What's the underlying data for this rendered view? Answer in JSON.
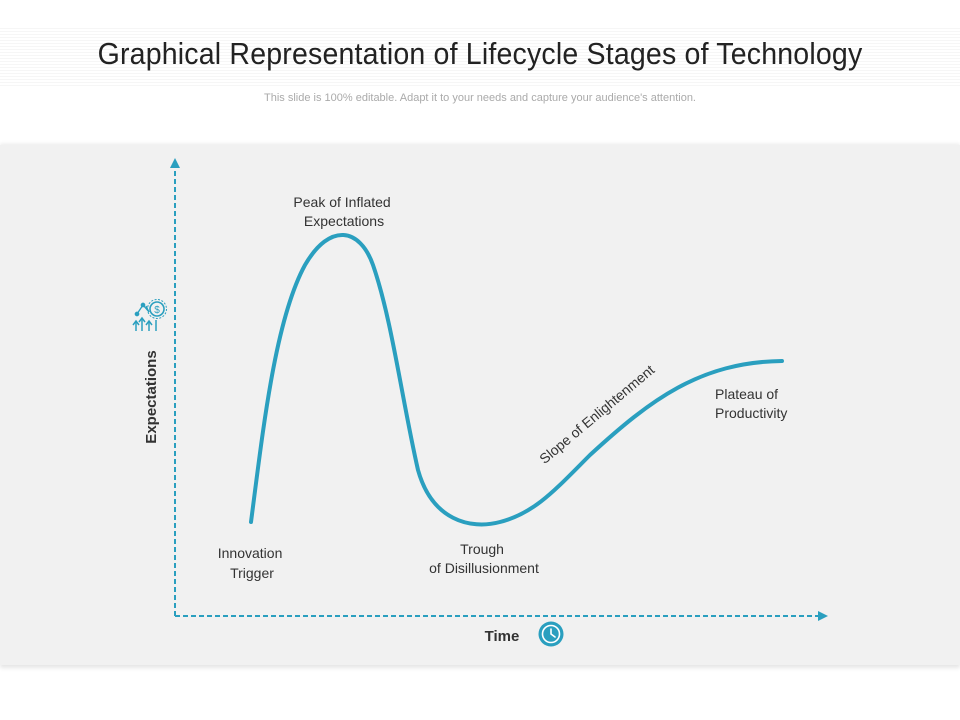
{
  "header": {
    "title": "Graphical Representation of Lifecycle Stages of Technology",
    "subtitle": "This slide is 100% editable. Adapt it to your needs and capture your audience's attention."
  },
  "diagram": {
    "accent_color": "#2a9fbf",
    "y_axis_label": "Expectations",
    "x_axis_label": "Time",
    "y_axis_icon": "growth-chart-dollar-icon",
    "x_axis_icon": "clock-icon",
    "stages": {
      "innovation_trigger": [
        "Innovation",
        "Trigger"
      ],
      "peak": [
        "Peak of Inflated",
        "Expectations"
      ],
      "trough": [
        "Trough",
        "of Disillusionment"
      ],
      "slope": "Slope of Enlightenment",
      "plateau": [
        "Plateau of",
        "Productivity"
      ]
    }
  }
}
